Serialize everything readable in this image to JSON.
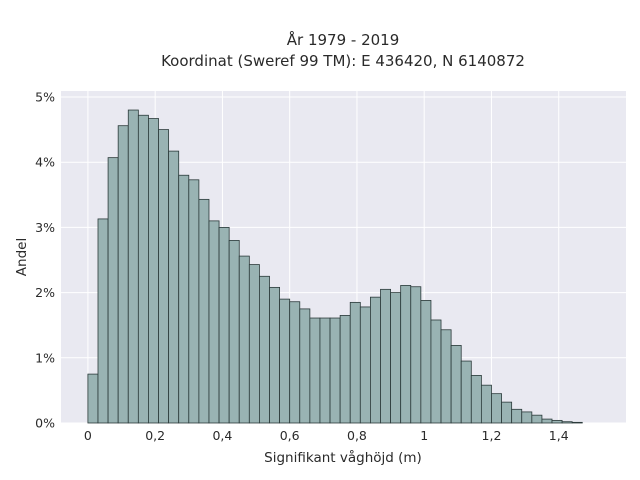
{
  "chart_data": {
    "type": "bar",
    "title_line1": "År 1979 - 2019",
    "title_line2": "Koordinat (Sweref 99 TM): E 436420, N 6140872",
    "xlabel": "Signifikant våghöjd (m)",
    "ylabel": "Andel",
    "xlim": [
      -0.08,
      1.6
    ],
    "ylim": [
      0,
      5
    ],
    "grid": true,
    "x_ticks": [
      {
        "value": 0,
        "label": "0"
      },
      {
        "value": 0.2,
        "label": "0,2"
      },
      {
        "value": 0.4,
        "label": "0,4"
      },
      {
        "value": 0.6,
        "label": "0,6"
      },
      {
        "value": 0.8,
        "label": "0,8"
      },
      {
        "value": 1.0,
        "label": "1"
      },
      {
        "value": 1.2,
        "label": "1,2"
      },
      {
        "value": 1.4,
        "label": "1,4"
      }
    ],
    "y_ticks": [
      {
        "value": 0,
        "label": "0%"
      },
      {
        "value": 1,
        "label": "1%"
      },
      {
        "value": 2,
        "label": "2%"
      },
      {
        "value": 3,
        "label": "3%"
      },
      {
        "value": 4,
        "label": "4%"
      },
      {
        "value": 5,
        "label": "5%"
      }
    ],
    "bin_width": 0.03,
    "bin_start": 0,
    "values": [
      0.75,
      3.13,
      4.07,
      4.56,
      4.8,
      4.72,
      4.67,
      4.5,
      4.17,
      3.8,
      3.73,
      3.43,
      3.1,
      3.0,
      2.8,
      2.56,
      2.43,
      2.25,
      2.08,
      1.9,
      1.86,
      1.75,
      1.61,
      1.61,
      1.61,
      1.65,
      1.85,
      1.78,
      1.93,
      2.05,
      2.0,
      2.11,
      2.09,
      1.88,
      1.58,
      1.43,
      1.19,
      0.95,
      0.73,
      0.58,
      0.45,
      0.32,
      0.21,
      0.17,
      0.12,
      0.06,
      0.04,
      0.02,
      0.01
    ],
    "bar_color": "#99b3b3",
    "bar_edge_color": "#2b3a3a",
    "plot_background": "#e9e9f1",
    "grid_color": "#ffffff"
  }
}
